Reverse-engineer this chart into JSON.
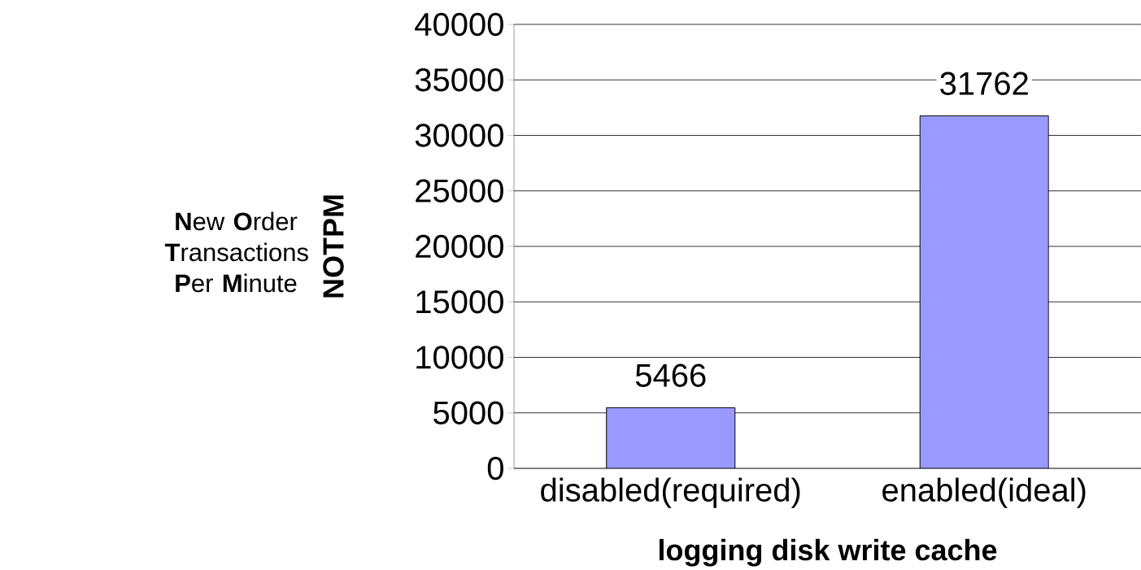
{
  "chart_data": {
    "type": "bar",
    "xlabel": "logging disk write cache",
    "ylabel": "NOTPM",
    "annotations": [
      "**N**ew **O**rder **T**ransactions **P**er **M**inute"
    ],
    "categories": [
      "disabled(required)",
      "enabled(ideal)"
    ],
    "values": [
      5466,
      31762
    ],
    "color": "#9999ff",
    "ylim": [
      0,
      40000
    ],
    "yticks": [
      0,
      5000,
      10000,
      15000,
      20000,
      25000,
      30000,
      35000,
      40000
    ],
    "grid": "y",
    "data_labels": true
  }
}
